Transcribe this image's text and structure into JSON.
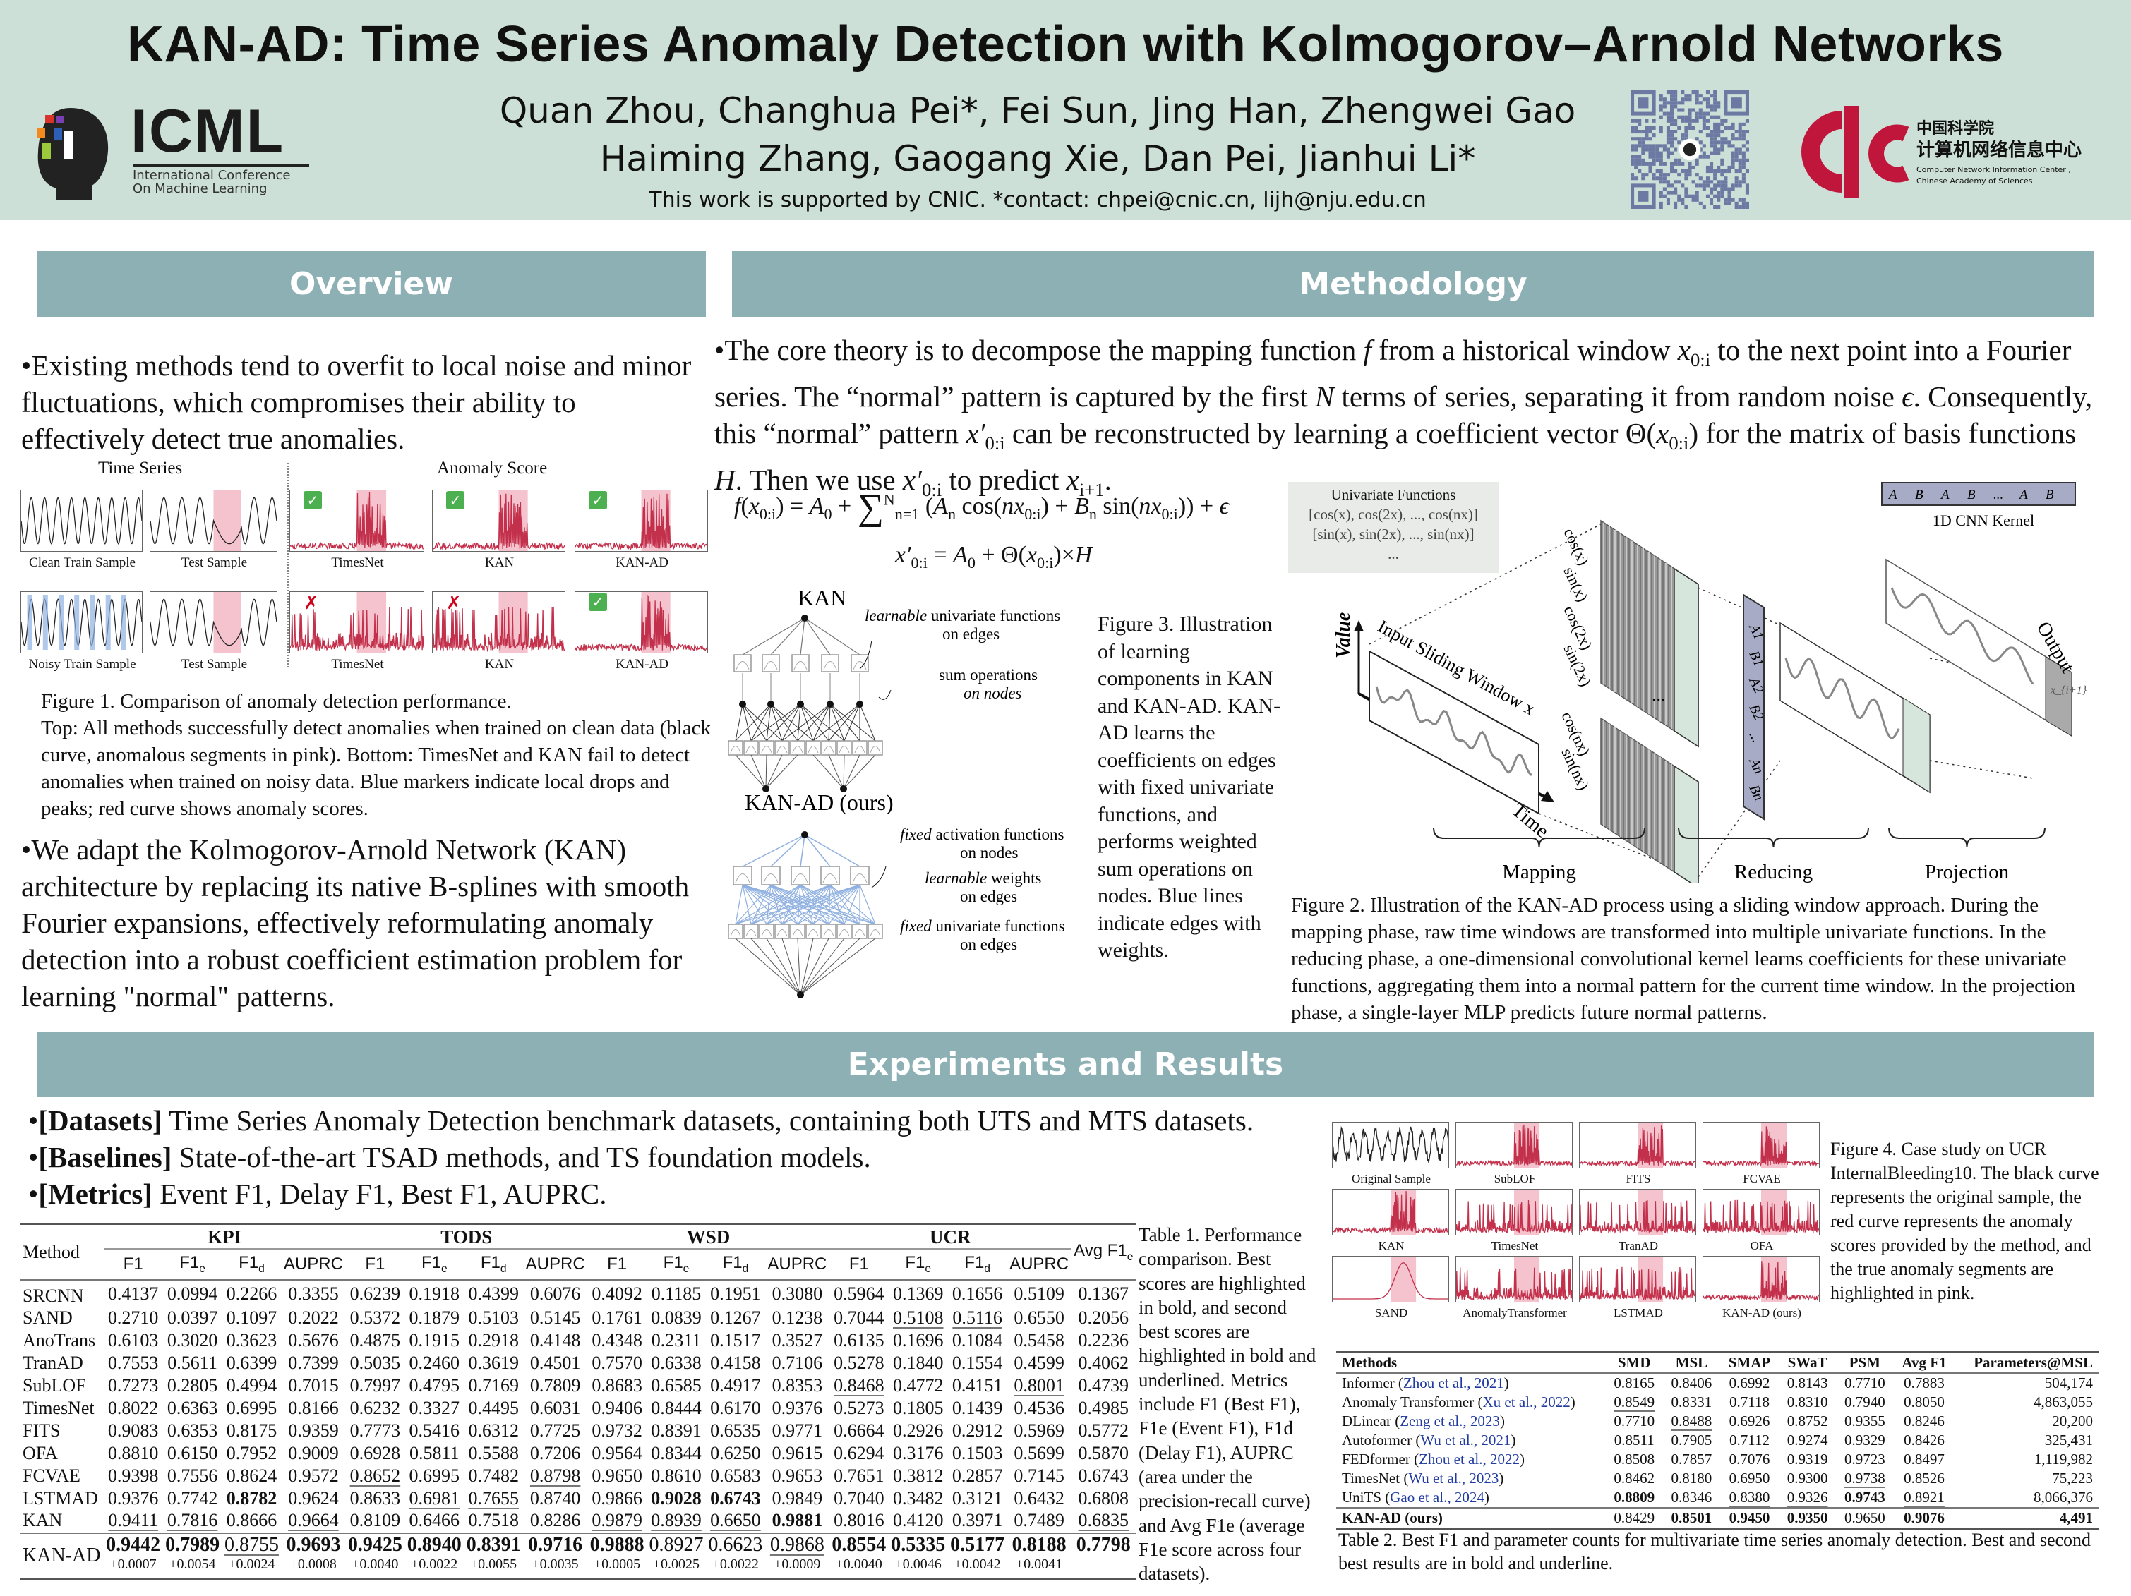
{
  "header": {
    "title": "KAN-AD: Time Series Anomaly Detection with Kolmogorov–Arnold Networks",
    "authors_line1": "Quan Zhou, Changhua Pei*, Fei Sun, Jing Han, Zhengwei Gao",
    "authors_line2": "Haiming Zhang, Gaogang Xie, Dan Pei, Jianhui Li*",
    "support": "This work is supported by CNIC. *contact: chpei@cnic.cn, lijh@nju.edu.cn",
    "icml_logo": {
      "name": "ICML",
      "subtitle1": "International Conference",
      "subtitle2": "On Machine Learning"
    },
    "cnic_logo": {
      "cn1": "中国科学院",
      "cn2": "计算机网络信息中心",
      "en1": "Computer Network Information Center ,",
      "en2": "Chinese Academy of Sciences"
    }
  },
  "overview": {
    "heading": "Overview",
    "bullet1": "Existing methods tend to overfit to local noise and minor fluctuations, which compromises their ability to effectively detect true anomalies.",
    "figure1": {
      "time_series_label": "Time Series",
      "anomaly_score_label": "Anomaly Score",
      "top_labels": [
        "Clean Train Sample",
        "Test Sample",
        "TimesNet",
        "KAN",
        "KAN-AD"
      ],
      "bottom_labels": [
        "Noisy Train Sample",
        "Test Sample",
        "TimesNet",
        "KAN",
        "KAN-AD"
      ],
      "check_mark": "✓",
      "cross_mark": "✗",
      "caption_title": "Figure 1. Comparison of anomaly detection performance.",
      "caption_body": "Top: All methods successfully detect anomalies when trained on clean data (black curve, anomalous segments in pink). Bottom: TimesNet and KAN fail to detect anomalies when trained on noisy data. Blue markers indicate local drops and peaks; red curve shows anomaly scores."
    },
    "bullet2": "We adapt the Kolmogorov-Arnold Network (KAN) architecture by replacing its native B-splines with smooth Fourier expansions, effectively reformulating anomaly detection into a robust coefficient estimation problem for learning \"normal\" patterns."
  },
  "methodology": {
    "heading": "Methodology",
    "paragraph": [
      [
        "The core theory is to decompose the mapping function ",
        ""
      ],
      [
        "f",
        "i"
      ],
      [
        " from a historical window ",
        ""
      ],
      [
        "x",
        "i"
      ],
      [
        "0:i",
        "sub"
      ],
      [
        " to the next point into a Fourier series. The “normal” pattern is captured by the first ",
        ""
      ],
      [
        "N",
        "i"
      ],
      [
        " terms of series, separating it from random noise ",
        ""
      ],
      [
        "ϵ",
        "i"
      ],
      [
        ". Consequently, this “normal” pattern ",
        ""
      ],
      [
        "x′",
        "i"
      ],
      [
        "0:i",
        "sub"
      ],
      [
        " can be reconstructed by learning a coefficient vector Θ(",
        ""
      ],
      [
        "x",
        "i"
      ],
      [
        "0:i",
        "sub"
      ],
      [
        ") for the matrix of basis functions ",
        ""
      ],
      [
        "H",
        "i"
      ],
      [
        ". Then we use ",
        ""
      ],
      [
        "x′",
        "i"
      ],
      [
        "0:i",
        "sub"
      ],
      [
        " to predict ",
        ""
      ],
      [
        "x",
        "i"
      ],
      [
        "i+1",
        "sub"
      ],
      [
        ".",
        ""
      ]
    ],
    "equation1": [
      [
        "f",
        "i"
      ],
      [
        "(",
        ""
      ],
      [
        "x",
        "i"
      ],
      [
        "0:i",
        "sub"
      ],
      [
        ") = ",
        ""
      ],
      [
        "A",
        "i"
      ],
      [
        "0",
        "sub"
      ],
      [
        " + ",
        ""
      ],
      [
        "∑",
        "big"
      ],
      [
        "N",
        "sup"
      ],
      [
        "n=1",
        "sub"
      ],
      [
        " (",
        ""
      ],
      [
        "A",
        "i"
      ],
      [
        "n",
        "sub"
      ],
      [
        " cos(",
        ""
      ],
      [
        "nx",
        "i"
      ],
      [
        "0:i",
        "sub"
      ],
      [
        ") + ",
        ""
      ],
      [
        "B",
        "i"
      ],
      [
        "n",
        "sub"
      ],
      [
        " sin(",
        ""
      ],
      [
        "nx",
        "i"
      ],
      [
        "0:i",
        "sub"
      ],
      [
        ")) + ",
        ""
      ],
      [
        "ϵ",
        "i"
      ]
    ],
    "equation2": [
      [
        "x′",
        "i"
      ],
      [
        "0:i",
        "sub"
      ],
      [
        " = ",
        ""
      ],
      [
        "A",
        "i"
      ],
      [
        "0",
        "sub"
      ],
      [
        " + Θ(",
        ""
      ],
      [
        "x",
        "i"
      ],
      [
        "0:i",
        "sub"
      ],
      [
        ")×",
        ""
      ],
      [
        "H",
        "i"
      ]
    ],
    "univariate_box": {
      "title": "Univariate Functions",
      "line1": "[cos(x), cos(2x), ..., cos(nx)]",
      "line2": "[sin(x), sin(2x), ..., sin(nx)]",
      "line3": "..."
    },
    "figure3": {
      "kan_title": "KAN",
      "kan_label1a": "learnable",
      "kan_label1b": " univariate functions",
      "kan_label1c": "on edges",
      "kan_label2a": "sum operations",
      "kan_label2b": "on nodes",
      "kanad_title": "KAN-AD (ours)",
      "kanad_label1a": "fixed",
      "kanad_label1b": " activation functions",
      "kanad_label1c": "on nodes",
      "kanad_label2a": "learnable",
      "kanad_label2b": " weights",
      "kanad_label2c": "on edges",
      "kanad_label3a": "fixed",
      "kanad_label3b": " univariate functions",
      "kanad_label3c": "on edges",
      "caption": "Figure 3. Illustration of learning components in KAN and KAN-AD. KAN-AD learns the coefficients on edges with fixed univariate functions, and performs weighted sum operations on nodes. Blue lines indicate edges with weights."
    },
    "figure2": {
      "kernel_items": [
        "A1",
        "B1",
        "A2",
        "B2",
        "...",
        "An",
        "Bn"
      ],
      "kernel_label": "1D CNN Kernel",
      "basis_labels_top": [
        "cos(x)",
        "sin(x)",
        "cos(2x)",
        "sin(2x)"
      ],
      "basis_labels_bottom": [
        "cos(nx)",
        "sin(nx)"
      ],
      "ellipsis": "...",
      "value_label": "Value",
      "window_label": "Input Sliding Window x",
      "time_label": "Time",
      "output_label": "Output",
      "output_point": "x_{i+1}",
      "stages": [
        "Mapping",
        "Reducing",
        "Projection"
      ],
      "caption": "Figure 2. Illustration of the KAN-AD process using a sliding window approach. During the mapping phase, raw time windows are transformed into multiple univariate functions. In the reducing phase, a one-dimensional convolutional kernel learns coefficients for these univariate functions, aggregating them into a normal pattern for the current time window. In the projection phase, a single-layer MLP predicts future normal patterns."
    }
  },
  "experiments": {
    "heading": "Experiments and Results",
    "bullets": [
      {
        "label": "[Datasets]",
        "text": " Time Series Anomaly Detection benchmark datasets, containing both UTS and MTS datasets."
      },
      {
        "label": "[Baselines]",
        "text": " State-of-the-art TSAD methods, and TS foundation models."
      },
      {
        "label": "[Metrics]",
        "text": " Event F1, Delay F1, Best F1, AUPRC."
      }
    ],
    "table1": {
      "method_header": "Method",
      "groups": [
        "KPI",
        "TODS",
        "WSD",
        "UCR"
      ],
      "metrics": [
        {
          "base": "F1",
          "sub": ""
        },
        {
          "base": "F1",
          "sub": "e"
        },
        {
          "base": "F1",
          "sub": "d"
        },
        {
          "base": "AUPRC",
          "sub": ""
        }
      ],
      "avg_header": {
        "base": "Avg F1",
        "sub": "e"
      },
      "style_legend": "* = bold, _ = underline",
      "rows": [
        {
          "method": "SRCNN",
          "values": [
            "0.4137",
            "0.0994",
            "0.2266",
            "0.3355",
            "0.6239",
            "0.1918",
            "0.4399",
            "0.6076",
            "0.4092",
            "0.1185",
            "0.1951",
            "0.3080",
            "0.5964",
            "0.1369",
            "0.1656",
            "0.5109",
            "0.1367"
          ]
        },
        {
          "method": "SAND",
          "values": [
            "0.2710",
            "0.0397",
            "0.1097",
            "0.2022",
            "0.5372",
            "0.1879",
            "0.5103",
            "0.5145",
            "0.1761",
            "0.0839",
            "0.1267",
            "0.1238",
            "0.7044",
            "_0.5108",
            "_0.5116",
            "0.6550",
            "0.2056"
          ]
        },
        {
          "method": "AnoTrans",
          "values": [
            "0.6103",
            "0.3020",
            "0.3623",
            "0.5676",
            "0.4875",
            "0.1915",
            "0.2918",
            "0.4148",
            "0.4348",
            "0.2311",
            "0.1517",
            "0.3527",
            "0.6135",
            "0.1696",
            "0.1084",
            "0.5458",
            "0.2236"
          ]
        },
        {
          "method": "TranAD",
          "values": [
            "0.7553",
            "0.5611",
            "0.6399",
            "0.7399",
            "0.5035",
            "0.2460",
            "0.3619",
            "0.4501",
            "0.7570",
            "0.6338",
            "0.4158",
            "0.7106",
            "0.5278",
            "0.1840",
            "0.1554",
            "0.4599",
            "0.4062"
          ]
        },
        {
          "method": "SubLOF",
          "values": [
            "0.7273",
            "0.2805",
            "0.4994",
            "0.7015",
            "0.7997",
            "0.4795",
            "0.7169",
            "0.7809",
            "0.8683",
            "0.6585",
            "0.4917",
            "0.8353",
            "_0.8468",
            "0.4772",
            "0.4151",
            "_0.8001",
            "0.4739"
          ]
        },
        {
          "method": "TimesNet",
          "values": [
            "0.8022",
            "0.6363",
            "0.6995",
            "0.8166",
            "0.6232",
            "0.3327",
            "0.4495",
            "0.6031",
            "0.9406",
            "0.8444",
            "0.6170",
            "0.9376",
            "0.5273",
            "0.1805",
            "0.1439",
            "0.4536",
            "0.4985"
          ]
        },
        {
          "method": "FITS",
          "values": [
            "0.9083",
            "0.6353",
            "0.8175",
            "0.9359",
            "0.7773",
            "0.5416",
            "0.6312",
            "0.7725",
            "0.9732",
            "0.8391",
            "0.6535",
            "0.9771",
            "0.6664",
            "0.2926",
            "0.2912",
            "0.5969",
            "0.5772"
          ]
        },
        {
          "method": "OFA",
          "values": [
            "0.8810",
            "0.6150",
            "0.7952",
            "0.9009",
            "0.6928",
            "0.5811",
            "0.5588",
            "0.7206",
            "0.9564",
            "0.8344",
            "0.6250",
            "0.9615",
            "0.6294",
            "0.3176",
            "0.1503",
            "0.5699",
            "0.5870"
          ]
        },
        {
          "method": "FCVAE",
          "values": [
            "0.9398",
            "0.7556",
            "0.8624",
            "0.9572",
            "_0.8652",
            "0.6995",
            "0.7482",
            "_0.8798",
            "0.9650",
            "0.8610",
            "0.6583",
            "0.9653",
            "0.7651",
            "0.3812",
            "0.2857",
            "0.7145",
            "0.6743"
          ]
        },
        {
          "method": "LSTMAD",
          "values": [
            "0.9376",
            "0.7742",
            "*0.8782",
            "0.9624",
            "0.8633",
            "_0.6981",
            "_0.7655",
            "0.8740",
            "0.9866",
            "*0.9028",
            "*0.6743",
            "0.9849",
            "0.7040",
            "0.3482",
            "0.3121",
            "0.6432",
            "0.6808"
          ]
        },
        {
          "method": "KAN",
          "values": [
            "_0.9411",
            "_0.7816",
            "0.8666",
            "_0.9664",
            "0.8109",
            "0.6466",
            "0.7518",
            "0.8286",
            "_0.9879",
            "_0.8939",
            "_0.6650",
            "*0.9881",
            "0.8016",
            "0.4120",
            "0.3971",
            "0.7489",
            "_0.6835"
          ]
        }
      ],
      "ours": {
        "method": "KAN-AD",
        "values": [
          "*0.9442",
          "*0.7989",
          "_0.8755",
          "*0.9693",
          "*0.9425",
          "*0.8940",
          "*0.8391",
          "*0.9716",
          "*0.9888",
          "0.8927",
          "0.6623",
          "_0.9868",
          "*0.8554",
          "*0.5335",
          "*0.5177",
          "*0.8188",
          "*0.7798"
        ],
        "std": [
          "±0.0007",
          "±0.0054",
          "±0.0024",
          "±0.0008",
          "±0.0040",
          "±0.0022",
          "±0.0055",
          "±0.0035",
          "±0.0005",
          "±0.0025",
          "±0.0022",
          "±0.0009",
          "±0.0040",
          "±0.0046",
          "±0.0042",
          "±0.0041",
          ""
        ]
      },
      "caption": "Table 1. Performance comparison. Best scores are highlighted in bold, and second best scores are highlighted in bold and underlined. Metrics include F1 (Best F1), F1e (Event F1), F1d (Delay F1), AUPRC (area under the precision-recall curve) and Avg F1e (average F1e score across four datasets)."
    },
    "figure4": {
      "panels": [
        "Original Sample",
        "SubLOF",
        "FITS",
        "FCVAE",
        "KAN",
        "TimesNet",
        "TranAD",
        "OFA",
        "SAND",
        "AnomalyTransformer",
        "LSTMAD",
        "KAN-AD (ours)"
      ],
      "caption": "Figure 4. Case study on UCR InternalBleeding10. The black curve represents the original sample, the red curve represents the anomaly scores provided by the method, and the true anomaly segments are highlighted in pink."
    },
    "table2": {
      "headers": [
        "Methods",
        "SMD",
        "MSL",
        "SMAP",
        "SWaT",
        "PSM",
        "Avg F1",
        "Parameters@MSL"
      ],
      "rows": [
        {
          "name": "Informer",
          "cite": "Zhou et al., 2021",
          "values": [
            "0.8165",
            "0.8406",
            "0.6992",
            "0.8143",
            "0.7710",
            "0.7883",
            "504,174"
          ]
        },
        {
          "name": "Anomaly Transformer",
          "cite": "Xu et al., 2022",
          "values": [
            "_0.8549",
            "0.8331",
            "0.7118",
            "0.8310",
            "0.7940",
            "0.8050",
            "4,863,055"
          ]
        },
        {
          "name": "DLinear",
          "cite": "Zeng et al., 2023",
          "values": [
            "0.7710",
            "_0.8488",
            "0.6926",
            "0.8752",
            "0.9355",
            "0.8246",
            "20,200"
          ]
        },
        {
          "name": "Autoformer",
          "cite": "Wu et al., 2021",
          "values": [
            "0.8511",
            "0.7905",
            "0.7112",
            "0.9274",
            "0.9329",
            "0.8426",
            "325,431"
          ]
        },
        {
          "name": "FEDformer",
          "cite": "Zhou et al., 2022",
          "values": [
            "0.8508",
            "0.7857",
            "0.7076",
            "0.9319",
            "0.9723",
            "0.8497",
            "1,119,982"
          ]
        },
        {
          "name": "TimesNet",
          "cite": "Wu et al., 2023",
          "values": [
            "0.8462",
            "0.8180",
            "0.6950",
            "0.9300",
            "_0.9738",
            "0.8526",
            "75,223"
          ]
        },
        {
          "name": "UniTS",
          "cite": "Gao et al., 2024",
          "values": [
            "*0.8809",
            "0.8346",
            "_0.8380",
            "_0.9326",
            "*0.9743",
            "_0.8921",
            "8,066,376"
          ]
        }
      ],
      "ours": {
        "name": "KAN-AD (ours)",
        "values": [
          "0.8429",
          "*0.8501",
          "*0.9450",
          "*0.9350",
          "0.9650",
          "*0.9076",
          "*4,491"
        ]
      },
      "caption": "Table 2. Best F1 and parameter counts for multivariate time series anomaly detection. Best and second best results are in bold and underline."
    }
  },
  "colors": {
    "header_bg": "#cde0d8",
    "section_bar": "#8db0b4",
    "anomaly_pink": "#f4c3cd",
    "score_red": "#c3304b",
    "kernel_purple": "#a8abc6",
    "qr_blue": "#6c7aa3",
    "cnic_red": "#c0163b"
  }
}
